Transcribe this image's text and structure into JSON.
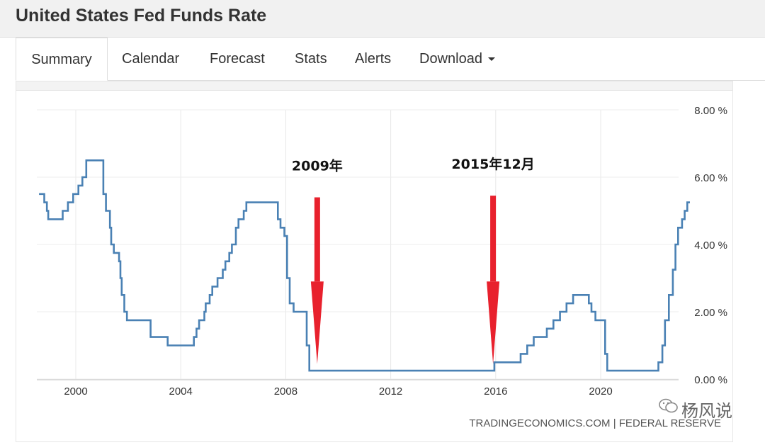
{
  "page": {
    "title": "United States Fed Funds Rate"
  },
  "tabs": [
    {
      "label": "Summary",
      "active": true
    },
    {
      "label": "Calendar"
    },
    {
      "label": "Forecast"
    },
    {
      "label": "Stats"
    },
    {
      "label": "Alerts"
    },
    {
      "label": "Download",
      "dropdown": true
    }
  ],
  "chart_data": {
    "type": "line",
    "title": "",
    "xlabel": "",
    "ylabel": "",
    "xlim": [
      1998.5,
      2023.2
    ],
    "ylim": [
      0,
      8
    ],
    "x_ticks": [
      "2000",
      "2004",
      "2008",
      "2012",
      "2016",
      "2020"
    ],
    "y_ticks": [
      "0.00 %",
      "2.00 %",
      "4.00 %",
      "6.00 %",
      "8.00 %"
    ],
    "grid": "vertical and horizontal",
    "series_color": "#4a81b4",
    "series": [
      {
        "name": "",
        "step": true,
        "points": [
          [
            1998.6,
            5.5
          ],
          [
            1998.8,
            5.25
          ],
          [
            1998.9,
            5.0
          ],
          [
            1998.95,
            4.75
          ],
          [
            1999.5,
            5.0
          ],
          [
            1999.7,
            5.25
          ],
          [
            1999.9,
            5.5
          ],
          [
            2000.1,
            5.75
          ],
          [
            2000.25,
            6.0
          ],
          [
            2000.4,
            6.5
          ],
          [
            2001.05,
            5.5
          ],
          [
            2001.15,
            5.0
          ],
          [
            2001.3,
            4.5
          ],
          [
            2001.35,
            4.0
          ],
          [
            2001.45,
            3.75
          ],
          [
            2001.65,
            3.5
          ],
          [
            2001.7,
            3.0
          ],
          [
            2001.75,
            2.5
          ],
          [
            2001.85,
            2.0
          ],
          [
            2001.95,
            1.75
          ],
          [
            2002.85,
            1.25
          ],
          [
            2003.5,
            1.0
          ],
          [
            2004.5,
            1.25
          ],
          [
            2004.6,
            1.5
          ],
          [
            2004.7,
            1.75
          ],
          [
            2004.9,
            2.0
          ],
          [
            2004.95,
            2.25
          ],
          [
            2005.1,
            2.5
          ],
          [
            2005.2,
            2.75
          ],
          [
            2005.4,
            3.0
          ],
          [
            2005.6,
            3.25
          ],
          [
            2005.7,
            3.5
          ],
          [
            2005.85,
            3.75
          ],
          [
            2005.95,
            4.0
          ],
          [
            2006.1,
            4.5
          ],
          [
            2006.2,
            4.75
          ],
          [
            2006.4,
            5.0
          ],
          [
            2006.5,
            5.25
          ],
          [
            2007.7,
            4.75
          ],
          [
            2007.8,
            4.5
          ],
          [
            2007.95,
            4.25
          ],
          [
            2008.05,
            3.0
          ],
          [
            2008.15,
            2.25
          ],
          [
            2008.3,
            2.0
          ],
          [
            2008.8,
            1.0
          ],
          [
            2008.9,
            0.25
          ],
          [
            2015.95,
            0.5
          ],
          [
            2016.95,
            0.75
          ],
          [
            2017.2,
            1.0
          ],
          [
            2017.45,
            1.25
          ],
          [
            2017.95,
            1.5
          ],
          [
            2018.2,
            1.75
          ],
          [
            2018.45,
            2.0
          ],
          [
            2018.7,
            2.25
          ],
          [
            2018.95,
            2.5
          ],
          [
            2019.55,
            2.25
          ],
          [
            2019.65,
            2.0
          ],
          [
            2019.8,
            1.75
          ],
          [
            2020.17,
            0.75
          ],
          [
            2020.25,
            0.25
          ],
          [
            2022.2,
            0.5
          ],
          [
            2022.35,
            1.0
          ],
          [
            2022.45,
            1.75
          ],
          [
            2022.6,
            2.5
          ],
          [
            2022.75,
            3.25
          ],
          [
            2022.85,
            4.0
          ],
          [
            2022.95,
            4.5
          ],
          [
            2023.1,
            4.75
          ],
          [
            2023.2,
            5.0
          ],
          [
            2023.3,
            5.25
          ],
          [
            2023.4,
            5.25
          ]
        ]
      }
    ],
    "annotations": [
      {
        "label": "2009年",
        "x": 2009.2,
        "y": 5.4,
        "y_end": 0.45,
        "color": "#e8212d"
      },
      {
        "label": "2015年12月",
        "x": 2015.9,
        "y": 5.45,
        "y_end": 0.45,
        "color": "#e8212d"
      }
    ],
    "source_text": "TRADINGECONOMICS.COM | FEDERAL RESERVE"
  },
  "watermark": {
    "text": "杨风说"
  }
}
